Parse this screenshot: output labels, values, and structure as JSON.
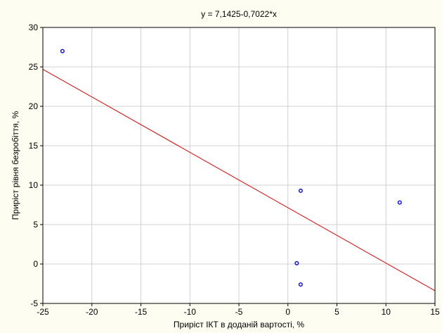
{
  "chart_data": {
    "type": "scatter",
    "title": "y = 7,1425-0,7022*x",
    "xlabel": "Приріст ІКТ в доданій вартості, %",
    "ylabel": "Приріст рівня безробіття, %",
    "xlim": [
      -25,
      15
    ],
    "ylim": [
      -5,
      30
    ],
    "xticks": [
      -25,
      -20,
      -15,
      -10,
      -5,
      0,
      5,
      10,
      15
    ],
    "yticks": [
      -5,
      0,
      5,
      10,
      15,
      20,
      25,
      30
    ],
    "grid": true,
    "points": [
      {
        "x": -23.0,
        "y": 27.0
      },
      {
        "x": 1.3,
        "y": 9.3
      },
      {
        "x": 11.4,
        "y": 7.8
      },
      {
        "x": 0.9,
        "y": 0.1
      },
      {
        "x": 1.3,
        "y": -2.6
      }
    ],
    "fit_line": {
      "intercept": 7.1425,
      "slope": -0.7022
    },
    "colors": {
      "background": "#fdfdf2",
      "plot_background": "#ffffff",
      "grid": "#d0d0d0",
      "points": "#0000ff",
      "fit_line": "#e00000"
    }
  }
}
